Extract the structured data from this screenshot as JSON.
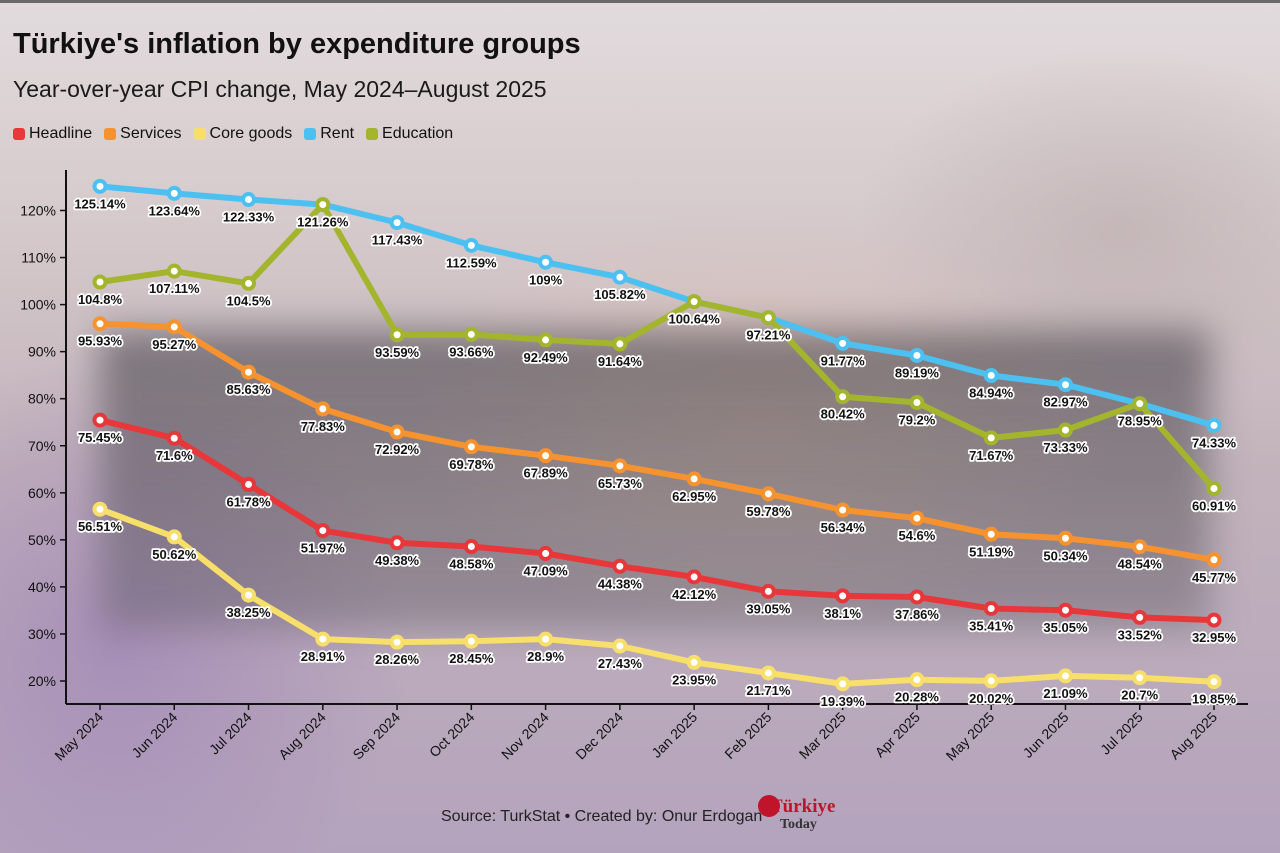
{
  "title": "Türkiye's inflation by expenditure groups",
  "subtitle": "Year-over-year CPI change, May 2024–August 2025",
  "source": "Source: TurkStat • Created by: Onur Erdogan",
  "brand": {
    "name": "Türkiye",
    "sub": "Today"
  },
  "chart_data": {
    "type": "line",
    "title": "Türkiye's inflation by expenditure groups",
    "subtitle": "Year-over-year CPI change, May 2024–August 2025",
    "xlabel": "",
    "ylabel": "",
    "ylim": [
      15,
      128
    ],
    "yticks": [
      "20%",
      "30%",
      "40%",
      "50%",
      "60%",
      "70%",
      "80%",
      "90%",
      "100%",
      "110%",
      "120%"
    ],
    "ytick_values": [
      20,
      30,
      40,
      50,
      60,
      70,
      80,
      90,
      100,
      110,
      120
    ],
    "categories": [
      "May 2024",
      "Jun 2024",
      "Jul 2024",
      "Aug 2024",
      "Sep 2024",
      "Oct 2024",
      "Nov 2024",
      "Dec 2024",
      "Jan 2025",
      "Feb 2025",
      "Mar 2025",
      "Apr 2025",
      "May 2025",
      "Jun 2025",
      "Jul 2025",
      "Aug 2025"
    ],
    "legend_position": "top-left",
    "series": [
      {
        "name": "Headline",
        "color": "#e8373a",
        "values": [
          75.45,
          71.6,
          61.78,
          51.97,
          49.38,
          48.58,
          47.09,
          44.38,
          42.12,
          39.05,
          38.1,
          37.86,
          35.41,
          35.05,
          33.52,
          32.95
        ],
        "labels": [
          "75.45%",
          "71.6%",
          "61.78%",
          "51.97%",
          "49.38%",
          "48.58%",
          "47.09%",
          "44.38%",
          "42.12%",
          "39.05%",
          "38.1%",
          "37.86%",
          "35.41%",
          "35.05%",
          "33.52%",
          "32.95%"
        ]
      },
      {
        "name": "Services",
        "color": "#f7932f",
        "values": [
          95.93,
          95.27,
          85.63,
          77.83,
          72.92,
          69.78,
          67.89,
          65.73,
          62.95,
          59.78,
          56.34,
          54.6,
          51.19,
          50.34,
          48.54,
          45.77
        ],
        "labels": [
          "95.93%",
          "95.27%",
          "85.63%",
          "77.83%",
          "72.92%",
          "69.78%",
          "67.89%",
          "65.73%",
          "62.95%",
          "59.78%",
          "56.34%",
          "54.6%",
          "51.19%",
          "50.34%",
          "48.54%",
          "45.77%"
        ]
      },
      {
        "name": "Core goods",
        "color": "#f8df6a",
        "values": [
          56.51,
          50.62,
          38.25,
          28.91,
          28.26,
          28.45,
          28.9,
          27.43,
          23.95,
          21.71,
          19.39,
          20.28,
          20.02,
          21.09,
          20.7,
          19.85
        ],
        "labels": [
          "56.51%",
          "50.62%",
          "38.25%",
          "28.91%",
          "28.26%",
          "28.45%",
          "28.9%",
          "27.43%",
          "23.95%",
          "21.71%",
          "19.39%",
          "20.28%",
          "20.02%",
          "21.09%",
          "20.7%",
          "19.85%"
        ]
      },
      {
        "name": "Rent",
        "color": "#4cc1f1",
        "values": [
          125.14,
          123.64,
          122.33,
          121.26,
          117.43,
          112.59,
          109,
          105.82,
          100.64,
          97.21,
          91.77,
          89.19,
          84.94,
          82.97,
          78.95,
          74.33
        ],
        "labels": [
          "125.14%",
          "123.64%",
          "122.33%",
          "121.26%",
          "117.43%",
          "112.59%",
          "109%",
          "105.82%",
          "100.64%",
          "97.21%",
          "91.77%",
          "89.19%",
          "84.94%",
          "82.97%",
          "78.95%",
          "74.33%"
        ]
      },
      {
        "name": "Education",
        "color": "#a3b52c",
        "values": [
          104.8,
          107.11,
          104.5,
          121.26,
          93.59,
          93.66,
          92.49,
          91.64,
          100.64,
          97.21,
          80.42,
          79.2,
          71.67,
          73.33,
          78.95,
          60.91
        ],
        "labels": [
          "104.8%",
          "107.11%",
          "104.5%",
          "121.26%",
          "93.59%",
          "93.66%",
          "92.49%",
          "91.64%",
          "100.64%",
          "97.21%",
          "80.42%",
          "79.2%",
          "71.67%",
          "73.33%",
          "78.95%",
          "60.91%"
        ]
      }
    ]
  }
}
